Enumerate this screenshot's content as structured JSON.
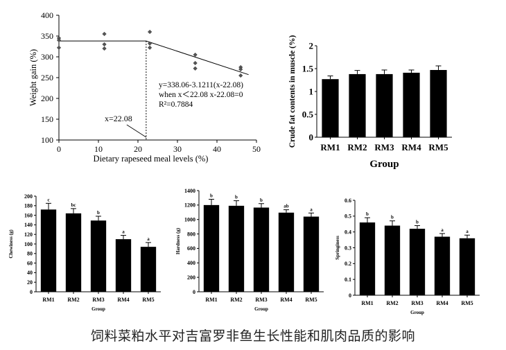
{
  "caption": "饲料菜粕水平对吉富罗非鱼生长性能和肌肉品质的影响",
  "chart_data": [
    {
      "type": "scatter",
      "xlabel": "Dietary rapeseed meal levels (%)",
      "ylabel": "Weight gain (%)",
      "xlim": [
        0,
        50
      ],
      "ylim": [
        100,
        400
      ],
      "xticks": [
        "0",
        "10",
        "20",
        "30",
        "40",
        "50"
      ],
      "yticks": [
        "100",
        "150",
        "200",
        "250",
        "300",
        "350",
        "400"
      ],
      "points": [
        {
          "x": 0,
          "y": 345
        },
        {
          "x": 0,
          "y": 340
        },
        {
          "x": 0,
          "y": 322
        },
        {
          "x": 11.5,
          "y": 355
        },
        {
          "x": 11.5,
          "y": 330
        },
        {
          "x": 11.5,
          "y": 320
        },
        {
          "x": 23,
          "y": 360
        },
        {
          "x": 23,
          "y": 332
        },
        {
          "x": 23,
          "y": 322
        },
        {
          "x": 34.5,
          "y": 305
        },
        {
          "x": 34.5,
          "y": 285
        },
        {
          "x": 34.5,
          "y": 272
        },
        {
          "x": 46,
          "y": 275
        },
        {
          "x": 46,
          "y": 270
        },
        {
          "x": 46,
          "y": 255
        }
      ],
      "fit_line": [
        {
          "x": 0,
          "y": 338.06
        },
        {
          "x": 22.08,
          "y": 338.06
        },
        {
          "x": 48,
          "y": 257.2
        }
      ],
      "breakpoint_label": "x=22.08",
      "equation": [
        "y=338.06-3.1211(x-22.08)",
        "when x＜22.08  x-22.08=0",
        "R²=0.7884"
      ]
    },
    {
      "type": "bar",
      "xlabel": "Group",
      "ylabel": "Crude fat contents in muscle (%)",
      "categories": [
        "RM1",
        "RM2",
        "RM3",
        "RM4",
        "RM5"
      ],
      "values": [
        1.27,
        1.38,
        1.38,
        1.41,
        1.47
      ],
      "errors": [
        0.07,
        0.08,
        0.09,
        0.06,
        0.09
      ],
      "ylim": [
        0,
        2
      ],
      "yticks": [
        "0",
        "0.5",
        "1",
        "1.5",
        "2"
      ]
    },
    {
      "type": "bar",
      "xlabel": "Group",
      "ylabel": "Chewiness (g)",
      "categories": [
        "RM1",
        "RM2",
        "RM3",
        "RM4",
        "RM5"
      ],
      "values": [
        172,
        164,
        149,
        110,
        94
      ],
      "errors": [
        13,
        10,
        9,
        8,
        9
      ],
      "letters": [
        "c",
        "bc",
        "b",
        "a",
        "a"
      ],
      "ylim": [
        0,
        200
      ],
      "yticks": [
        "0",
        "20",
        "40",
        "60",
        "80",
        "100",
        "120",
        "140",
        "160",
        "180",
        "200"
      ]
    },
    {
      "type": "bar",
      "xlabel": "Group",
      "ylabel": "Hardness (g)",
      "categories": [
        "RM1",
        "RM2",
        "RM3",
        "RM4",
        "RM5"
      ],
      "values": [
        1200,
        1190,
        1165,
        1095,
        1040
      ],
      "errors": [
        80,
        70,
        55,
        40,
        50
      ],
      "letters": [
        "b",
        "b",
        "b",
        "ab",
        "a"
      ],
      "ylim": [
        0,
        1400
      ],
      "yticks": [
        "0",
        "200",
        "400",
        "600",
        "800",
        "1000",
        "1200",
        "1400"
      ]
    },
    {
      "type": "bar",
      "xlabel": "Group",
      "ylabel": "Springiness",
      "categories": [
        "RM1",
        "RM2",
        "RM3",
        "RM4",
        "RM5"
      ],
      "values": [
        0.46,
        0.44,
        0.42,
        0.37,
        0.36
      ],
      "errors": [
        0.03,
        0.03,
        0.02,
        0.02,
        0.02
      ],
      "letters": [
        "b",
        "b",
        "b",
        "a",
        "a"
      ],
      "ylim": [
        0,
        0.6
      ],
      "yticks": [
        "0",
        "0.1",
        "0.2",
        "0.3",
        "0.4",
        "0.5",
        "0.6"
      ]
    }
  ]
}
